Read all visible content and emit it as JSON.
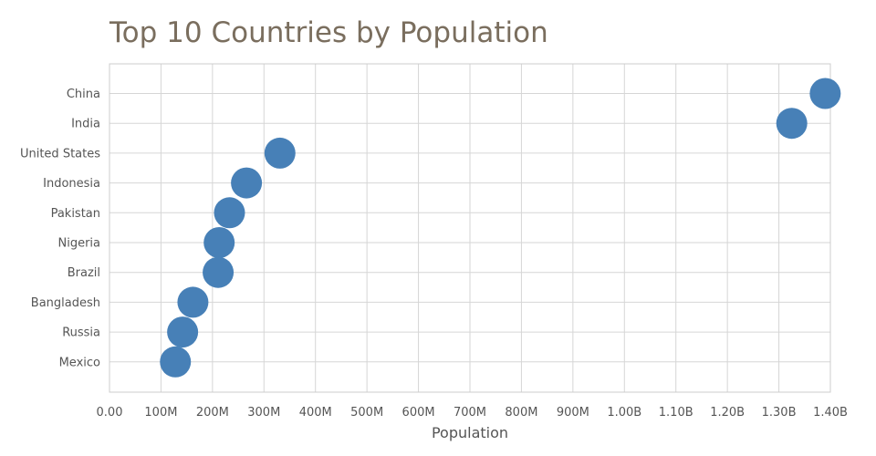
{
  "chart_data": {
    "type": "scatter",
    "title": "Top 10 Countries by Population",
    "xlabel": "Population",
    "ylabel": "",
    "xlim": [
      0,
      1400000000
    ],
    "x_ticks": [
      "0.00",
      "100M",
      "200M",
      "300M",
      "400M",
      "500M",
      "600M",
      "700M",
      "800M",
      "900M",
      "1.00B",
      "1.10B",
      "1.20B",
      "1.30B",
      "1.40B"
    ],
    "categories": [
      "China",
      "India",
      "United States",
      "Indonesia",
      "Pakistan",
      "Nigeria",
      "Brazil",
      "Bangladesh",
      "Russia",
      "Mexico"
    ],
    "values": [
      1390000000,
      1325000000,
      331000000,
      266000000,
      233000000,
      213000000,
      211000000,
      162000000,
      142000000,
      128000000
    ],
    "grid": true,
    "color": "#4780b7"
  }
}
